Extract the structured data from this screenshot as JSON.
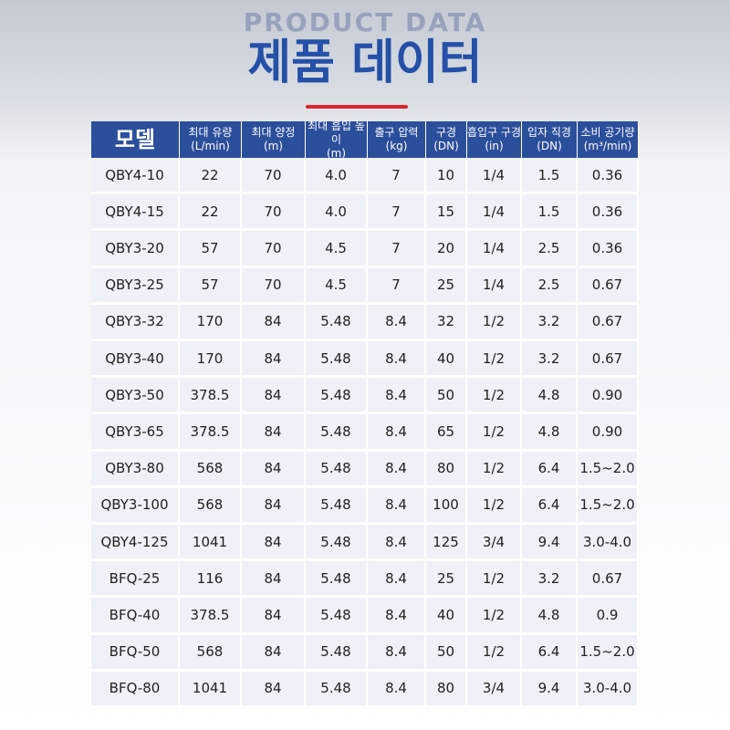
{
  "header": {
    "subtitle": "PRODUCT DATA",
    "title": "제품 데이터"
  },
  "table": {
    "columns": [
      {
        "name": "모델"
      },
      {
        "name": "최대 유량",
        "unit": "(L/min)"
      },
      {
        "name": "최대 양정",
        "unit": "(m)"
      },
      {
        "name": "최대 흡입 높이",
        "unit": "(m)"
      },
      {
        "name": "출구 압력",
        "unit": "(kg)"
      },
      {
        "name": "구경",
        "unit": "(DN)"
      },
      {
        "name": "흡입구 구경",
        "unit": "(in)"
      },
      {
        "name": "입자 직경",
        "unit": "(DN)"
      },
      {
        "name": "소비 공기량",
        "unit": "(m³/min)"
      }
    ],
    "rows": [
      [
        "QBY4-10",
        "22",
        "70",
        "4.0",
        "7",
        "10",
        "1/4",
        "1.5",
        "0.36"
      ],
      [
        "QBY4-15",
        "22",
        "70",
        "4.0",
        "7",
        "15",
        "1/4",
        "1.5",
        "0.36"
      ],
      [
        "QBY3-20",
        "57",
        "70",
        "4.5",
        "7",
        "20",
        "1/4",
        "2.5",
        "0.36"
      ],
      [
        "QBY3-25",
        "57",
        "70",
        "4.5",
        "7",
        "25",
        "1/4",
        "2.5",
        "0.67"
      ],
      [
        "QBY3-32",
        "170",
        "84",
        "5.48",
        "8.4",
        "32",
        "1/2",
        "3.2",
        "0.67"
      ],
      [
        "QBY3-40",
        "170",
        "84",
        "5.48",
        "8.4",
        "40",
        "1/2",
        "3.2",
        "0.67"
      ],
      [
        "QBY3-50",
        "378.5",
        "84",
        "5.48",
        "8.4",
        "50",
        "1/2",
        "4.8",
        "0.90"
      ],
      [
        "QBY3-65",
        "378.5",
        "84",
        "5.48",
        "8.4",
        "65",
        "1/2",
        "4.8",
        "0.90"
      ],
      [
        "QBY3-80",
        "568",
        "84",
        "5.48",
        "8.4",
        "80",
        "1/2",
        "6.4",
        "1.5~2.0"
      ],
      [
        "QBY3-100",
        "568",
        "84",
        "5.48",
        "8.4",
        "100",
        "1/2",
        "6.4",
        "1.5~2.0"
      ],
      [
        "QBY4-125",
        "1041",
        "84",
        "5.48",
        "8.4",
        "125",
        "3/4",
        "9.4",
        "3.0-4.0"
      ],
      [
        "BFQ-25",
        "116",
        "84",
        "5.48",
        "8.4",
        "25",
        "1/2",
        "3.2",
        "0.67"
      ],
      [
        "BFQ-40",
        "378.5",
        "84",
        "5.48",
        "8.4",
        "40",
        "1/2",
        "4.8",
        "0.9"
      ],
      [
        "BFQ-50",
        "568",
        "84",
        "5.48",
        "8.4",
        "50",
        "1/2",
        "6.4",
        "1.5~2.0"
      ],
      [
        "BFQ-80",
        "1041",
        "84",
        "5.48",
        "8.4",
        "80",
        "3/4",
        "9.4",
        "3.0-4.0"
      ]
    ]
  }
}
